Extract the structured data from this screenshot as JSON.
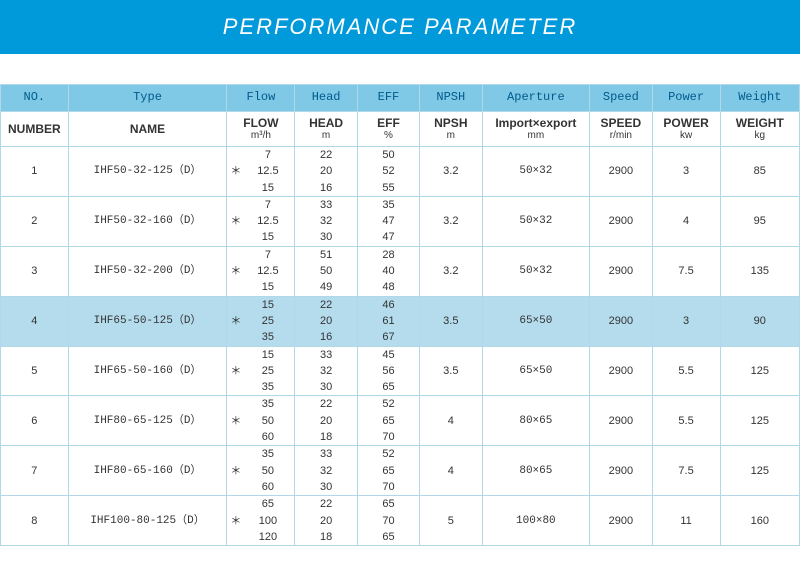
{
  "title": "PERFORMANCE PARAMETER",
  "columns_top": [
    "NO.",
    "Type",
    "Flow",
    "Head",
    "EFF",
    "NPSH",
    "Aperture",
    "Speed",
    "Power",
    "Weight"
  ],
  "columns_sub": [
    {
      "label": "NUMBER",
      "unit": ""
    },
    {
      "label": "NAME",
      "unit": ""
    },
    {
      "label": "FLOW",
      "unit": "m³/h"
    },
    {
      "label": "HEAD",
      "unit": "m"
    },
    {
      "label": "EFF",
      "unit": "%"
    },
    {
      "label": "NPSH",
      "unit": "m"
    },
    {
      "label": "Import×export",
      "unit": "mm"
    },
    {
      "label": "SPEED",
      "unit": "r/min"
    },
    {
      "label": "POWER",
      "unit": "kw"
    },
    {
      "label": "WEIGHT",
      "unit": "kg"
    }
  ],
  "rows": [
    {
      "no": "1",
      "type": "IHF50-32-125（D）",
      "flow": [
        "7",
        "12.5",
        "15"
      ],
      "head": [
        "22",
        "20",
        "16"
      ],
      "eff": [
        "50",
        "52",
        "55"
      ],
      "npsh": "3.2",
      "aperture": "50×32",
      "speed": "2900",
      "power": "3",
      "weight": "85"
    },
    {
      "no": "2",
      "type": "IHF50-32-160（D）",
      "flow": [
        "7",
        "12.5",
        "15"
      ],
      "head": [
        "33",
        "32",
        "30"
      ],
      "eff": [
        "35",
        "47",
        "47"
      ],
      "npsh": "3.2",
      "aperture": "50×32",
      "speed": "2900",
      "power": "4",
      "weight": "95"
    },
    {
      "no": "3",
      "type": "IHF50-32-200（D）",
      "flow": [
        "7",
        "12.5",
        "15"
      ],
      "head": [
        "51",
        "50",
        "49"
      ],
      "eff": [
        "28",
        "40",
        "48"
      ],
      "npsh": "3.2",
      "aperture": "50×32",
      "speed": "2900",
      "power": "7.5",
      "weight": "135"
    },
    {
      "no": "4",
      "type": "IHF65-50-125（D）",
      "flow": [
        "15",
        "25",
        "35"
      ],
      "head": [
        "22",
        "20",
        "16"
      ],
      "eff": [
        "46",
        "61",
        "67"
      ],
      "npsh": "3.5",
      "aperture": "65×50",
      "speed": "2900",
      "power": "3",
      "weight": "90",
      "selected": true
    },
    {
      "no": "5",
      "type": "IHF65-50-160（D）",
      "flow": [
        "15",
        "25",
        "35"
      ],
      "head": [
        "33",
        "32",
        "30"
      ],
      "eff": [
        "45",
        "56",
        "65"
      ],
      "npsh": "3.5",
      "aperture": "65×50",
      "speed": "2900",
      "power": "5.5",
      "weight": "125"
    },
    {
      "no": "6",
      "type": "IHF80-65-125（D）",
      "flow": [
        "35",
        "50",
        "60"
      ],
      "head": [
        "22",
        "20",
        "18"
      ],
      "eff": [
        "52",
        "65",
        "70"
      ],
      "npsh": "4",
      "aperture": "80×65",
      "speed": "2900",
      "power": "5.5",
      "weight": "125"
    },
    {
      "no": "7",
      "type": "IHF80-65-160（D）",
      "flow": [
        "35",
        "50",
        "60"
      ],
      "head": [
        "33",
        "32",
        "30"
      ],
      "eff": [
        "52",
        "65",
        "70"
      ],
      "npsh": "4",
      "aperture": "80×65",
      "speed": "2900",
      "power": "7.5",
      "weight": "125"
    },
    {
      "no": "8",
      "type": "IHF100-80-125（D）",
      "flow": [
        "65",
        "100",
        "120"
      ],
      "head": [
        "22",
        "20",
        "18"
      ],
      "eff": [
        "65",
        "70",
        "65"
      ],
      "npsh": "5",
      "aperture": "100×80",
      "speed": "2900",
      "power": "11",
      "weight": "160"
    }
  ],
  "colors": {
    "titlebar_bg": "#0099d9",
    "header_bg": "#7fc9e6",
    "selected_bg": "#b4dced",
    "border": "#b0d8e8"
  }
}
